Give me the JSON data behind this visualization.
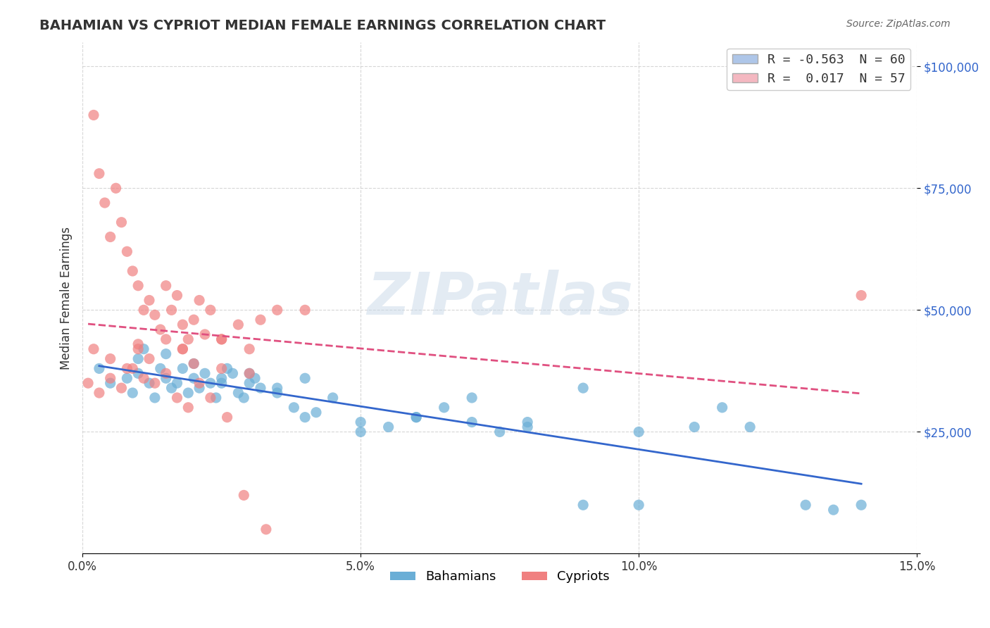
{
  "title": "BAHAMIAN VS CYPRIOT MEDIAN FEMALE EARNINGS CORRELATION CHART",
  "source": "Source: ZipAtlas.com",
  "xlabel_ticks": [
    "0.0%",
    "5.0%",
    "10.0%",
    "15.0%"
  ],
  "xlabel_values": [
    0.0,
    5.0,
    10.0,
    15.0
  ],
  "ylabel_ticks": [
    0,
    25000,
    50000,
    75000,
    100000
  ],
  "ylabel_labels": [
    "",
    "$25,000",
    "$50,000",
    "$75,000",
    "$100,000"
  ],
  "xlim": [
    0.0,
    15.0
  ],
  "ylim": [
    0,
    105000
  ],
  "legend_entries": [
    {
      "label": "R = -0.563  N = 60",
      "color": "#aec6e8"
    },
    {
      "label": "R =  0.017  N = 57",
      "color": "#f4b8c1"
    }
  ],
  "bahamians_color": "#6aaed6",
  "cypriots_color": "#f08080",
  "trendline_blue": "#3366cc",
  "trendline_pink": "#e05080",
  "watermark": "ZIPatlas",
  "watermark_color": "#c8d8e8",
  "bahamians_x": [
    0.3,
    0.5,
    0.8,
    0.9,
    1.0,
    1.1,
    1.2,
    1.3,
    1.4,
    1.5,
    1.6,
    1.7,
    1.8,
    1.9,
    2.0,
    2.1,
    2.2,
    2.3,
    2.4,
    2.5,
    2.6,
    2.7,
    2.8,
    2.9,
    3.0,
    3.1,
    3.2,
    3.5,
    3.8,
    4.0,
    4.2,
    4.5,
    5.0,
    5.5,
    6.0,
    6.5,
    7.0,
    7.5,
    8.0,
    9.0,
    10.0,
    11.0,
    12.0,
    13.0,
    14.0,
    1.0,
    1.5,
    2.0,
    2.5,
    3.0,
    3.5,
    4.0,
    5.0,
    6.0,
    7.0,
    8.0,
    9.0,
    10.0,
    11.5,
    13.5
  ],
  "bahamians_y": [
    38000,
    35000,
    36000,
    33000,
    37000,
    42000,
    35000,
    32000,
    38000,
    36000,
    34000,
    35000,
    38000,
    33000,
    36000,
    34000,
    37000,
    35000,
    32000,
    36000,
    38000,
    37000,
    33000,
    32000,
    35000,
    36000,
    34000,
    33000,
    30000,
    28000,
    29000,
    32000,
    27000,
    26000,
    28000,
    30000,
    32000,
    25000,
    27000,
    10000,
    10000,
    26000,
    26000,
    10000,
    10000,
    40000,
    41000,
    39000,
    35000,
    37000,
    34000,
    36000,
    25000,
    28000,
    27000,
    26000,
    34000,
    25000,
    30000,
    9000
  ],
  "cypriots_x": [
    0.1,
    0.2,
    0.3,
    0.4,
    0.5,
    0.6,
    0.7,
    0.8,
    0.9,
    1.0,
    1.1,
    1.2,
    1.3,
    1.4,
    1.5,
    1.6,
    1.7,
    1.8,
    1.9,
    2.0,
    2.1,
    2.2,
    2.3,
    2.5,
    2.8,
    3.0,
    3.2,
    3.5,
    0.5,
    0.8,
    1.0,
    1.2,
    1.5,
    1.8,
    2.0,
    2.5,
    3.0,
    4.0,
    0.3,
    0.5,
    0.7,
    0.9,
    1.1,
    1.3,
    1.5,
    1.7,
    1.9,
    2.1,
    2.3,
    2.6,
    2.9,
    3.3,
    0.2,
    1.0,
    1.8,
    2.5,
    14.0
  ],
  "cypriots_y": [
    35000,
    90000,
    78000,
    72000,
    65000,
    75000,
    68000,
    62000,
    58000,
    55000,
    50000,
    52000,
    49000,
    46000,
    55000,
    50000,
    53000,
    47000,
    44000,
    48000,
    52000,
    45000,
    50000,
    44000,
    47000,
    42000,
    48000,
    50000,
    40000,
    38000,
    42000,
    40000,
    44000,
    42000,
    39000,
    38000,
    37000,
    50000,
    33000,
    36000,
    34000,
    38000,
    36000,
    35000,
    37000,
    32000,
    30000,
    35000,
    32000,
    28000,
    12000,
    5000,
    42000,
    43000,
    42000,
    44000,
    53000
  ]
}
